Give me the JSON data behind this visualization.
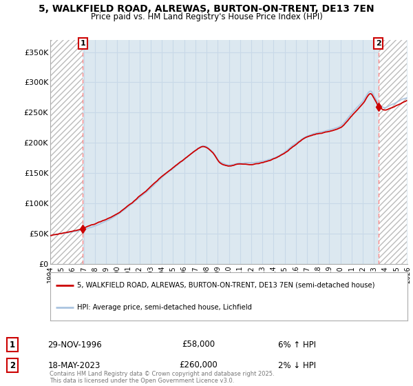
{
  "title_line1": "5, WALKFIELD ROAD, ALREWAS, BURTON-ON-TRENT, DE13 7EN",
  "title_line2": "Price paid vs. HM Land Registry's House Price Index (HPI)",
  "ylim": [
    0,
    370000
  ],
  "yticks": [
    0,
    50000,
    100000,
    150000,
    200000,
    250000,
    300000,
    350000
  ],
  "ytick_labels": [
    "£0",
    "£50K",
    "£100K",
    "£150K",
    "£200K",
    "£250K",
    "£300K",
    "£350K"
  ],
  "xlim_start": 1994.0,
  "xlim_end": 2026.0,
  "sale1_year": 1996.92,
  "sale1_price": 58000,
  "sale2_year": 2023.38,
  "sale2_price": 260000,
  "legend_line1": "5, WALKFIELD ROAD, ALREWAS, BURTON-ON-TRENT, DE13 7EN (semi-detached house)",
  "legend_line2": "HPI: Average price, semi-detached house, Lichfield",
  "annotation1_date": "29-NOV-1996",
  "annotation1_price": "£58,000",
  "annotation1_hpi": "6% ↑ HPI",
  "annotation2_date": "18-MAY-2023",
  "annotation2_price": "£260,000",
  "annotation2_hpi": "2% ↓ HPI",
  "line_color_property": "#cc0000",
  "line_color_hpi": "#aac4e0",
  "hatch_color": "#bbbbbb",
  "grid_color": "#c8d8e8",
  "plot_bg_color": "#dce8f0",
  "bg_color": "#ffffff",
  "copyright_text": "Contains HM Land Registry data © Crown copyright and database right 2025.\nThis data is licensed under the Open Government Licence v3.0."
}
